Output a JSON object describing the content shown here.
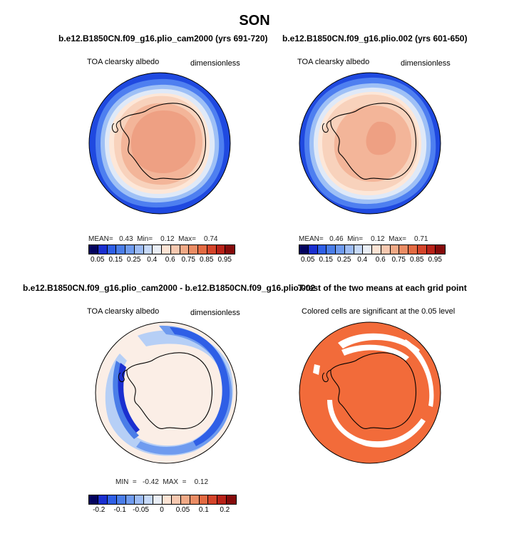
{
  "main_title": "SON",
  "panels": {
    "p1": {
      "title": "b.e12.B1850CN.f09_g16.plio_cam2000 (yrs 691-720)",
      "variable": "TOA clearsky albedo",
      "units": "dimensionless",
      "stats": "MEAN=   0.43  Min=    0.12  Max=    0.74"
    },
    "p2": {
      "title": "b.e12.B1850CN.f09_g16.plio.002 (yrs 601-650)",
      "variable": "TOA clearsky albedo",
      "units": "dimensionless",
      "stats": "MEAN=   0.46  Min=    0.12  Max=    0.71"
    },
    "p3": {
      "title": "b.e12.B1850CN.f09_g16.plio_cam2000 - b.e12.B1850CN.f09_g16.plio.002",
      "variable": "TOA clearsky albedo",
      "units": "dimensionless",
      "stats": "MIN  =   -0.42  MAX  =    0.12"
    },
    "p4": {
      "title": "T-test of the two means at each grid point",
      "subtitle": "Colored cells are significant at the 0.05 level"
    }
  },
  "colorbar_abs": {
    "colors": [
      "#03035e",
      "#1a2fd0",
      "#2f5fe6",
      "#4a7de8",
      "#6f9bef",
      "#9dbcf5",
      "#c6d9f8",
      "#e9eef6",
      "#fbe3d4",
      "#f6c8b0",
      "#f0a986",
      "#ea8c64",
      "#e36a42",
      "#d4442a",
      "#b82218",
      "#850a0a"
    ],
    "ticks": [
      "0.05",
      "0.15",
      "0.25",
      "0.4",
      "0.6",
      "0.75",
      "0.85",
      "0.95"
    ]
  },
  "colorbar_diff": {
    "colors": [
      "#03035e",
      "#1a2fd0",
      "#2f5fe6",
      "#4a7de8",
      "#6f9bef",
      "#9dbcf5",
      "#c6d9f8",
      "#e9eef6",
      "#fbe3d4",
      "#f6c8b0",
      "#f0a986",
      "#ea8c64",
      "#e36a42",
      "#d4442a",
      "#b82218",
      "#850a0a"
    ],
    "ticks": [
      "-0.2",
      "-0.1",
      "-0.05",
      "0",
      "0.05",
      "0.1",
      "0.2"
    ]
  }
}
